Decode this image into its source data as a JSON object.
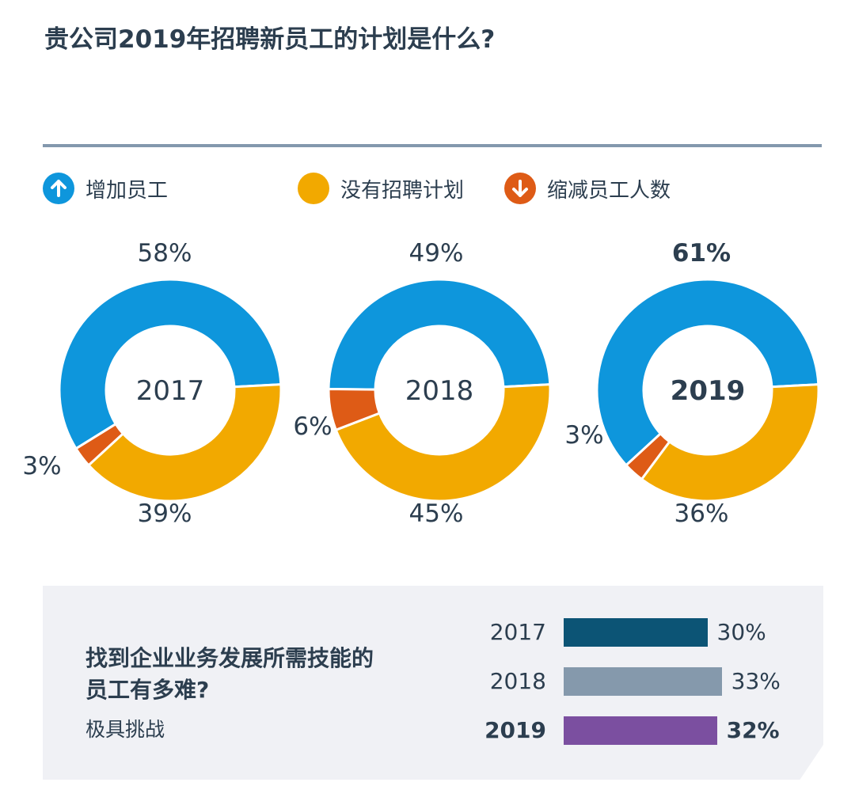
{
  "title": "贵公司2019年招聘新员工的计划是什么?",
  "legend": [
    {
      "label": "增加员工",
      "icon": "arrow-up-icon",
      "color": "#0e96dc"
    },
    {
      "label": "没有招聘计划",
      "icon": "",
      "color": "#f2a900"
    },
    {
      "label": "缩减员工人数",
      "icon": "arrow-down-icon",
      "color": "#de5b16"
    }
  ],
  "chart_data": [
    {
      "type": "pie",
      "title": "贵公司2019年招聘新员工的计划是什么?",
      "series_names": [
        "增加员工",
        "没有招聘计划",
        "缩减员工人数"
      ],
      "colors": [
        "#0e96dc",
        "#f2a900",
        "#de5b16"
      ],
      "donuts": [
        {
          "year": "2017",
          "values": [
            58,
            39,
            3
          ],
          "labels": [
            "58%",
            "39%",
            "3%"
          ],
          "bold": false
        },
        {
          "year": "2018",
          "values": [
            49,
            45,
            6
          ],
          "labels": [
            "49%",
            "45%",
            "6%"
          ],
          "bold": false
        },
        {
          "year": "2019",
          "values": [
            61,
            36,
            3
          ],
          "labels": [
            "61%",
            "36%",
            "3%"
          ],
          "bold": true
        }
      ]
    },
    {
      "type": "bar",
      "title": "找到企业业务发展所需技能的员工有多难?",
      "subtitle": "极具挑战",
      "categories": [
        "2017",
        "2018",
        "2019"
      ],
      "values": [
        30,
        33,
        32
      ],
      "labels": [
        "30%",
        "33%",
        "32%"
      ],
      "colors": [
        "#0c5475",
        "#8599ac",
        "#7b4fa0"
      ]
    }
  ],
  "question": {
    "line1": "找到企业业务发展所需技能的",
    "line2": "员工有多难?",
    "subtitle": "极具挑战"
  }
}
